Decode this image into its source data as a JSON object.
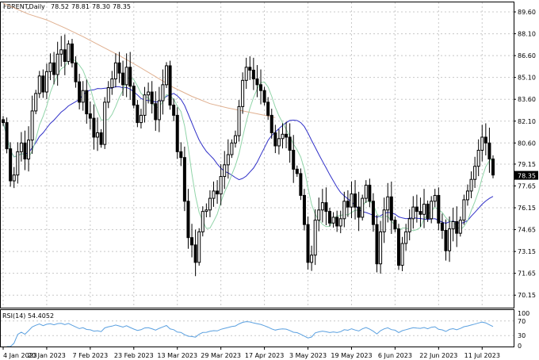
{
  "chart_data": {
    "type": "candlestick",
    "header": {
      "symbol": "FBRENT.",
      "timeframe": ",Daily",
      "open": "78.52",
      "high": "78.81",
      "low": "78.30",
      "close": "78.35"
    },
    "price_axis": {
      "range": [
        69.4,
        90.2
      ],
      "ticks": [
        "89.60",
        "88.10",
        "86.60",
        "85.10",
        "83.60",
        "82.10",
        "80.60",
        "79.15",
        "77.65",
        "76.15",
        "74.65",
        "73.15",
        "71.65",
        "70.15"
      ],
      "current_price": "78.35"
    },
    "time_axis": {
      "ticks": [
        {
          "label": "4 Jan 2023",
          "index": 0
        },
        {
          "label": "20 Jan 2023",
          "index": 12
        },
        {
          "label": "7 Feb 2023",
          "index": 24
        },
        {
          "label": "23 Feb 2023",
          "index": 36
        },
        {
          "label": "13 Mar 2023",
          "index": 48
        },
        {
          "label": "29 Mar 2023",
          "index": 60
        },
        {
          "label": "17 Apr 2023",
          "index": 72
        },
        {
          "label": "3 May 2023",
          "index": 84
        },
        {
          "label": "19 May 2023",
          "index": 96
        },
        {
          "label": "6 Jun 2023",
          "index": 108
        },
        {
          "label": "22 Jun 2023",
          "index": 120
        },
        {
          "label": "11 Jul 2023",
          "index": 132
        }
      ]
    },
    "closes": [
      82.0,
      80.2,
      78.0,
      78.4,
      80.0,
      80.6,
      79.5,
      80.8,
      82.8,
      84.0,
      85.2,
      84.1,
      85.5,
      86.1,
      85.3,
      86.7,
      87.0,
      86.2,
      87.4,
      86.1,
      84.8,
      83.4,
      84.2,
      82.6,
      82.3,
      81.0,
      81.3,
      80.5,
      83.4,
      84.4,
      85.0,
      86.1,
      85.4,
      84.6,
      85.8,
      84.5,
      83.2,
      82.0,
      82.5,
      83.9,
      84.1,
      83.3,
      82.2,
      83.5,
      84.6,
      85.9,
      83.2,
      82.5,
      80.0,
      79.6,
      76.6,
      74.1,
      73.6,
      72.4,
      74.5,
      75.9,
      76.0,
      76.8,
      77.3,
      77.1,
      78.3,
      79.1,
      79.8,
      80.6,
      81.1,
      83.1,
      84.9,
      85.8,
      85.6,
      85.0,
      84.6,
      84.2,
      83.4,
      82.5,
      81.3,
      80.4,
      80.9,
      81.2,
      81.0,
      80.1,
      78.8,
      78.5,
      77.0,
      75.0,
      72.4,
      72.9,
      75.3,
      76.0,
      76.5,
      75.9,
      75.1,
      75.5,
      74.9,
      75.4,
      76.6,
      76.2,
      77.1,
      76.2,
      75.5,
      76.8,
      77.7,
      76.6,
      75.0,
      72.3,
      74.5,
      76.0,
      76.9,
      75.3,
      74.7,
      72.2,
      73.7,
      74.5,
      75.4,
      76.2,
      75.9,
      75.7,
      76.4,
      75.4,
      76.6,
      77.0,
      75.1,
      74.6,
      73.2,
      74.7,
      75.2,
      74.4,
      75.3,
      76.7,
      77.3,
      78.1,
      79.0,
      80.1,
      81.0,
      80.6,
      79.5,
      78.4
    ],
    "ma_fast": {
      "color": "#90d4a8",
      "period_label": ""
    },
    "ma_mid": {
      "color": "#3030c8",
      "period_label": ""
    },
    "ma_slow": {
      "color": "#e0b090",
      "values": [
        [
          83,
          90.2
        ],
        [
          90,
          89.45
        ],
        [
          95,
          89.05
        ],
        [
          100,
          88.5
        ],
        [
          105,
          87.9
        ],
        [
          110,
          87.25
        ],
        [
          115,
          86.6
        ],
        [
          120,
          85.9
        ],
        [
          125,
          85.15
        ],
        [
          130,
          84.4
        ],
        [
          135,
          83.8
        ],
        [
          140,
          83.3
        ],
        [
          145,
          83.0
        ],
        [
          150,
          82.75
        ],
        [
          155,
          82.5
        ],
        [
          158,
          82.35
        ]
      ]
    },
    "rsi": {
      "label": "RSI(14) 54.4052",
      "ticks": [
        "100",
        "70",
        "30",
        "0"
      ],
      "levels": [
        70,
        30
      ],
      "color": "#5aa0e0"
    }
  }
}
